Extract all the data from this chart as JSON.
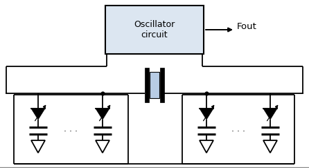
{
  "bg_color": "#ffffff",
  "box_color": "#dce6f1",
  "box_edge_color": "#000000",
  "box_label": "Oscillator\ncircuit",
  "fout_label": "Fout",
  "line_color": "#000000"
}
